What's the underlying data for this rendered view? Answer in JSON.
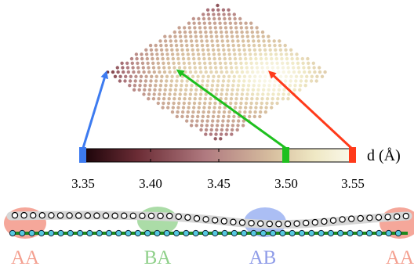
{
  "colorbar": {
    "ticks": [
      "3.35",
      "3.40",
      "3.45",
      "3.50",
      "3.55"
    ],
    "label": "d (Å)",
    "min": 3.35,
    "max": 3.55,
    "gradient_colors": [
      "#1a0308",
      "#6b2c35",
      "#b07a80",
      "#d8c0a0",
      "#efe8c4",
      "#fbfaee"
    ]
  },
  "markers": [
    {
      "name": "AA",
      "value": 3.35,
      "color": "#3d7bf0"
    },
    {
      "name": "BA",
      "value": 3.5,
      "color": "#1ec01e"
    },
    {
      "name": "AB",
      "value": 3.55,
      "color": "#ff3a1a"
    }
  ],
  "stacking_labels": [
    {
      "text": "AA",
      "color": "#f4a090"
    },
    {
      "text": "BA",
      "color": "#8fd08a"
    },
    {
      "text": "AB",
      "color": "#8f9ce8"
    },
    {
      "text": "AA",
      "color": "#f4a090"
    }
  ],
  "layer_colors": {
    "bottom_line": "#1e8a1e",
    "bottom_atoms": "#55c8e0",
    "top_atoms": "#ffffff",
    "top_band": "#d6d6d6"
  }
}
